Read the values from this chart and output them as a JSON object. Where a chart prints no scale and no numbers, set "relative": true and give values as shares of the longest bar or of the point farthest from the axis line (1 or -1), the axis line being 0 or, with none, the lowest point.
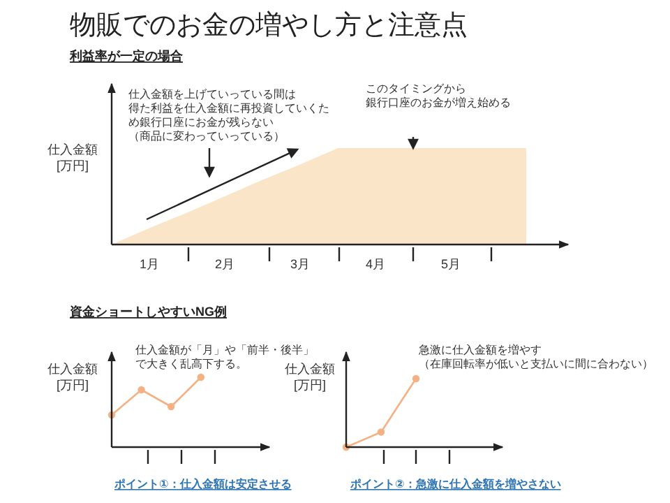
{
  "chart_data": [
    {
      "type": "area",
      "title": "物販でのお金の増やし方と注意点",
      "subtitle": "利益率が一定の場合",
      "ylabel": "仕入金額\n[万円]",
      "relative": true,
      "categories": [
        null,
        "1月",
        null,
        "2月",
        null,
        "3月",
        null,
        "4月",
        null,
        "5月",
        null,
        null
      ],
      "series": [
        {
          "color": "#fbe5c8",
          "values": [
            0,
            0.17,
            0.33,
            0.5,
            0.67,
            0.83,
            1,
            1,
            1,
            1,
            1,
            1
          ]
        }
      ],
      "annotations": [
        "仕入金額を上げていっている間は得た利益を仕入金額に再投資していくため銀行口座にお金が残らない（商品に変わっていっている）",
        "このタイミングから銀行口座のお金が増え始める"
      ]
    },
    {
      "type": "line",
      "subtitle": "資金ショートしやすいNG例",
      "ylabel": "仕入金額\n[万円]",
      "relative": true,
      "categories": [
        null,
        null,
        null,
        null
      ],
      "marker": "circle",
      "series": [
        {
          "color": "#f4b183",
          "values": [
            0.46,
            0.82,
            0.58,
            1
          ]
        }
      ],
      "annotations": [
        "仕入金額が「月」や「前半・後半」で大きく乱高下する。",
        "ポイント①：仕入金額は安定させる"
      ]
    },
    {
      "type": "line",
      "ylabel": "仕入金額\n[万円]",
      "relative": true,
      "categories": [
        null,
        null,
        null
      ],
      "marker": "circle",
      "series": [
        {
          "color": "#f4b183",
          "values": [
            0,
            0.22,
            1
          ]
        }
      ],
      "annotations": [
        "急激に仕入金額を増やす（在庫回転率が低いと支払いに間に合わない）",
        "ポイント②：急激に仕入金額を増やさない"
      ]
    }
  ]
}
